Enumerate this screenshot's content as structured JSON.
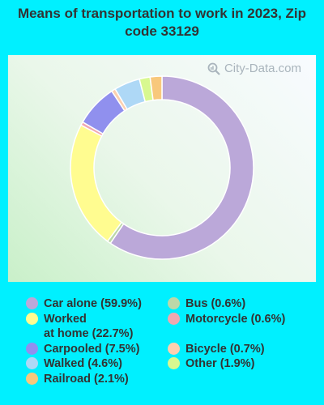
{
  "chart_data": {
    "type": "pie",
    "title": "Means of transportation to work in 2023, Zip code 33129",
    "slices": [
      {
        "label": "Car alone",
        "percent_label": "(59.9%)",
        "value": 59.9,
        "color": "#bba8d9"
      },
      {
        "label": "Bus",
        "percent_label": "(0.6%)",
        "value": 0.6,
        "color": "#bcd8a8"
      },
      {
        "label": "Worked at home",
        "label_line1": "Worked",
        "label_line2": "at home",
        "percent_label": "(22.7%)",
        "value": 22.7,
        "color": "#fffc90"
      },
      {
        "label": "Motorcycle",
        "percent_label": "(0.6%)",
        "value": 0.6,
        "color": "#f0a8b0"
      },
      {
        "label": "Carpooled",
        "percent_label": "(7.5%)",
        "value": 7.5,
        "color": "#9090ee"
      },
      {
        "label": "Bicycle",
        "percent_label": "(0.7%)",
        "value": 0.7,
        "color": "#fcd0b0"
      },
      {
        "label": "Walked",
        "percent_label": "(4.6%)",
        "value": 4.6,
        "color": "#aed8f6"
      },
      {
        "label": "Other",
        "percent_label": "(1.9%)",
        "value": 1.9,
        "color": "#d8f890"
      },
      {
        "label": "Railroad",
        "percent_label": "(2.1%)",
        "value": 2.1,
        "color": "#f8c87c"
      }
    ],
    "legend_placement": "bottom"
  },
  "watermark": {
    "text": "City-Data.com",
    "icon": "magnifier-chart-icon"
  },
  "colors": {
    "background": "#00f0ff"
  }
}
